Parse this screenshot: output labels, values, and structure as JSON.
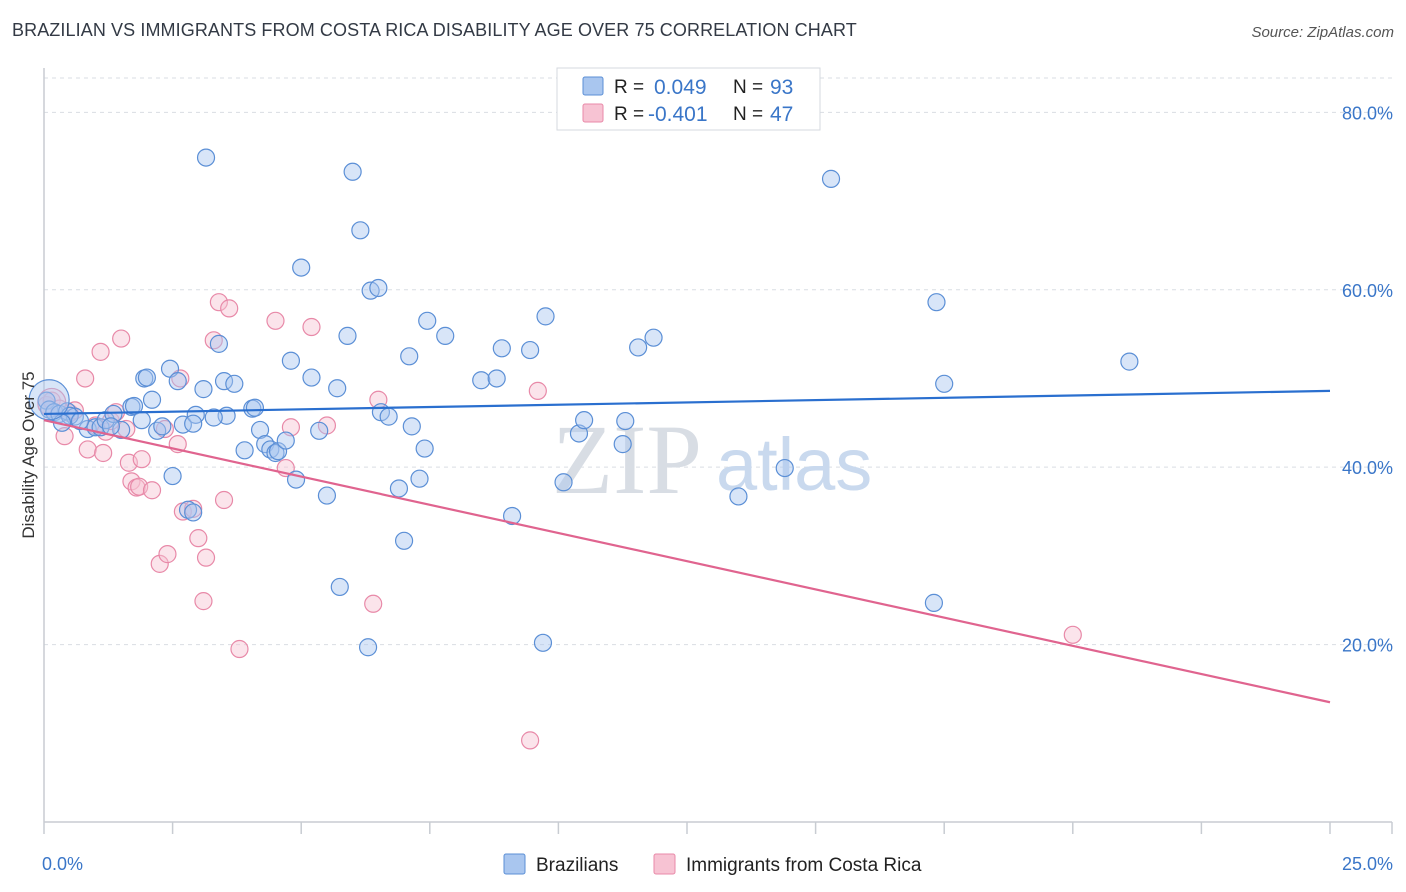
{
  "title": "BRAZILIAN VS IMMIGRANTS FROM COSTA RICA DISABILITY AGE OVER 75 CORRELATION CHART",
  "source": "Source: ZipAtlas.com",
  "watermark": {
    "zip": "ZIP",
    "atlas": "atlas"
  },
  "colors": {
    "blue_fill": "#a9c6ef",
    "blue_stroke": "#5b8fd6",
    "blue_line": "#2a6fcf",
    "pink_fill": "#f7c3d3",
    "pink_stroke": "#e889a8",
    "pink_line": "#e0648f",
    "grid": "#d9dde3",
    "axis": "#c8ccd2",
    "tick_text": "#3a76c8"
  },
  "legend_box": {
    "rows": [
      {
        "r_label": "R =",
        "r_value": "0.049",
        "n_label": "N =",
        "n_value": "93"
      },
      {
        "r_label": "R =",
        "r_value": "-0.401",
        "n_label": "N =",
        "n_value": "47"
      }
    ]
  },
  "bottom_legend": {
    "series1": "Brazilians",
    "series2": "Immigrants from Costa Rica"
  },
  "chart_data": {
    "type": "scatter",
    "title": "BRAZILIAN VS IMMIGRANTS FROM COSTA RICA DISABILITY AGE OVER 75 CORRELATION CHART",
    "xlabel": "",
    "ylabel": "Disability Age Over 75",
    "xlim": [
      0,
      25
    ],
    "ylim": [
      0,
      85
    ],
    "x_tick_labels": [
      "0.0%",
      "25.0%"
    ],
    "y_ticks": [
      20,
      40,
      60,
      80
    ],
    "y_tick_labels": [
      "20.0%",
      "40.0%",
      "60.0%",
      "80.0%"
    ],
    "grid": true,
    "legend_position": "top-center",
    "series": [
      {
        "name": "Brazilians",
        "r": 0.049,
        "n": 93,
        "trend": {
          "x": [
            0,
            25
          ],
          "y": [
            46.0,
            48.6
          ]
        },
        "points": [
          [
            0.05,
            47.5
          ],
          [
            0.1,
            46.5
          ],
          [
            0.2,
            46.2
          ],
          [
            0.3,
            46.0
          ],
          [
            0.45,
            46.3
          ],
          [
            0.6,
            45.7
          ],
          [
            0.85,
            44.3
          ],
          [
            1.0,
            44.5
          ],
          [
            1.1,
            44.5
          ],
          [
            1.2,
            45.3
          ],
          [
            1.35,
            46.0
          ],
          [
            1.5,
            44.2
          ],
          [
            1.7,
            46.8
          ],
          [
            1.75,
            46.9
          ],
          [
            1.95,
            50.0
          ],
          [
            2.0,
            50.1
          ],
          [
            2.1,
            47.6
          ],
          [
            2.2,
            44.1
          ],
          [
            2.3,
            44.6
          ],
          [
            2.45,
            51.1
          ],
          [
            2.5,
            39.0
          ],
          [
            2.6,
            49.7
          ],
          [
            2.7,
            44.8
          ],
          [
            2.8,
            35.2
          ],
          [
            2.9,
            34.9
          ],
          [
            2.95,
            45.9
          ],
          [
            2.9,
            44.9
          ],
          [
            3.1,
            48.8
          ],
          [
            3.15,
            74.9
          ],
          [
            3.4,
            53.9
          ],
          [
            3.5,
            49.7
          ],
          [
            3.55,
            45.8
          ],
          [
            3.7,
            49.4
          ],
          [
            3.9,
            41.9
          ],
          [
            4.05,
            46.6
          ],
          [
            4.1,
            46.7
          ],
          [
            4.2,
            44.2
          ],
          [
            4.3,
            42.6
          ],
          [
            4.4,
            42.0
          ],
          [
            4.5,
            41.6
          ],
          [
            4.55,
            41.8
          ],
          [
            4.7,
            43.0
          ],
          [
            4.8,
            52.0
          ],
          [
            4.9,
            38.6
          ],
          [
            5.0,
            62.5
          ],
          [
            5.2,
            50.1
          ],
          [
            5.35,
            44.1
          ],
          [
            5.5,
            36.8
          ],
          [
            5.7,
            48.9
          ],
          [
            5.75,
            26.5
          ],
          [
            5.9,
            54.8
          ],
          [
            6.0,
            73.3
          ],
          [
            6.15,
            66.7
          ],
          [
            6.3,
            19.7
          ],
          [
            6.35,
            59.9
          ],
          [
            6.5,
            60.2
          ],
          [
            6.55,
            46.2
          ],
          [
            6.7,
            45.7
          ],
          [
            6.9,
            37.6
          ],
          [
            7.0,
            31.7
          ],
          [
            7.1,
            52.5
          ],
          [
            7.15,
            44.6
          ],
          [
            7.3,
            38.7
          ],
          [
            7.4,
            42.1
          ],
          [
            7.45,
            56.5
          ],
          [
            7.8,
            54.8
          ],
          [
            8.5,
            49.8
          ],
          [
            8.8,
            50.0
          ],
          [
            8.9,
            53.4
          ],
          [
            9.1,
            34.5
          ],
          [
            9.45,
            53.2
          ],
          [
            9.7,
            20.2
          ],
          [
            9.75,
            57.0
          ],
          [
            10.1,
            38.3
          ],
          [
            10.4,
            43.8
          ],
          [
            10.5,
            45.3
          ],
          [
            11.3,
            45.2
          ],
          [
            11.25,
            42.6
          ],
          [
            11.55,
            53.5
          ],
          [
            11.85,
            54.6
          ],
          [
            13.5,
            36.7
          ],
          [
            14.4,
            39.9
          ],
          [
            15.3,
            72.5
          ],
          [
            17.3,
            24.7
          ],
          [
            17.35,
            58.6
          ],
          [
            17.5,
            49.4
          ],
          [
            21.1,
            51.9
          ],
          [
            0.5,
            45.8
          ],
          [
            0.7,
            45.2
          ],
          [
            1.3,
            44.6
          ],
          [
            1.9,
            45.3
          ],
          [
            3.3,
            45.6
          ],
          [
            0.35,
            45.0
          ]
        ]
      },
      {
        "name": "Immigrants from Costa Rica",
        "r": -0.401,
        "n": 47,
        "trend": {
          "x": [
            0,
            25
          ],
          "y": [
            45.3,
            13.5
          ]
        },
        "points": [
          [
            0.05,
            47.0
          ],
          [
            0.15,
            47.5
          ],
          [
            0.3,
            46.6
          ],
          [
            0.4,
            43.5
          ],
          [
            0.5,
            46.1
          ],
          [
            0.6,
            46.4
          ],
          [
            0.8,
            50.0
          ],
          [
            0.85,
            42.0
          ],
          [
            1.0,
            44.7
          ],
          [
            1.1,
            53.0
          ],
          [
            1.15,
            41.6
          ],
          [
            1.2,
            44.0
          ],
          [
            1.3,
            45.2
          ],
          [
            1.4,
            46.2
          ],
          [
            1.5,
            54.5
          ],
          [
            1.6,
            44.3
          ],
          [
            1.65,
            40.5
          ],
          [
            1.7,
            38.4
          ],
          [
            1.8,
            37.7
          ],
          [
            1.85,
            37.8
          ],
          [
            1.9,
            40.9
          ],
          [
            2.1,
            37.4
          ],
          [
            2.25,
            29.1
          ],
          [
            2.35,
            44.3
          ],
          [
            2.4,
            30.2
          ],
          [
            2.6,
            42.6
          ],
          [
            2.65,
            50.0
          ],
          [
            2.7,
            35.0
          ],
          [
            2.9,
            35.3
          ],
          [
            3.0,
            32.0
          ],
          [
            3.1,
            24.9
          ],
          [
            3.15,
            29.8
          ],
          [
            3.3,
            54.3
          ],
          [
            3.4,
            58.6
          ],
          [
            3.5,
            36.3
          ],
          [
            3.6,
            57.9
          ],
          [
            3.8,
            19.5
          ],
          [
            4.5,
            56.5
          ],
          [
            4.7,
            39.9
          ],
          [
            4.8,
            44.5
          ],
          [
            5.2,
            55.8
          ],
          [
            5.5,
            44.7
          ],
          [
            6.4,
            24.6
          ],
          [
            6.5,
            47.6
          ],
          [
            9.6,
            48.6
          ],
          [
            9.45,
            9.2
          ],
          [
            20.0,
            21.1
          ]
        ]
      }
    ]
  }
}
